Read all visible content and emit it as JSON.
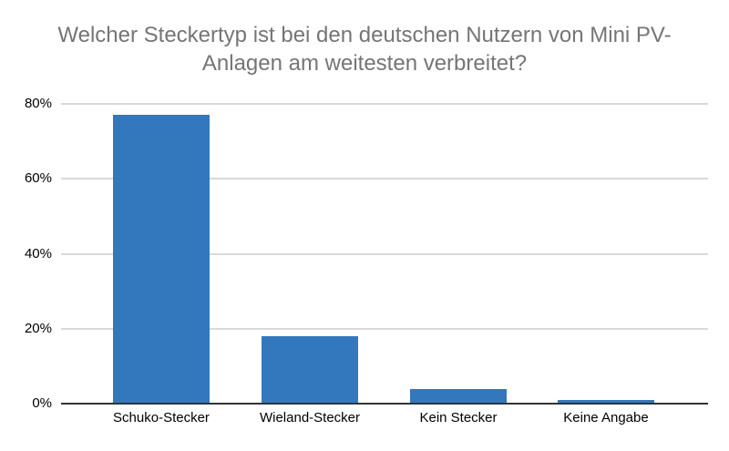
{
  "chart_data": {
    "type": "bar",
    "title": "Welcher Steckertyp ist bei den deutschen Nutzern von Mini PV-Anlagen am weitesten verbreitet?",
    "title_lines": [
      "Welcher Steckertyp ist bei den deutschen Nutzern von Mini PV-",
      "Anlagen am weitesten verbreitet?"
    ],
    "categories": [
      "Schuko-Stecker",
      "Wieland-Stecker",
      "Kein Stecker",
      "Keine Angabe"
    ],
    "values": [
      77,
      18,
      4,
      1
    ],
    "unit": "%",
    "xlabel": "",
    "ylabel": "",
    "ylim": [
      0,
      80
    ],
    "yticks": [
      0,
      20,
      40,
      60,
      80
    ],
    "ytick_labels": [
      "0%",
      "20%",
      "40%",
      "60%",
      "80%"
    ],
    "grid": "horizontal",
    "legend": "none",
    "colors": {
      "bar": "#3378bd",
      "title_text": "#757575",
      "axis_line": "#333333",
      "gridline": "#d9d9d9",
      "tick_text": "#000000"
    }
  }
}
